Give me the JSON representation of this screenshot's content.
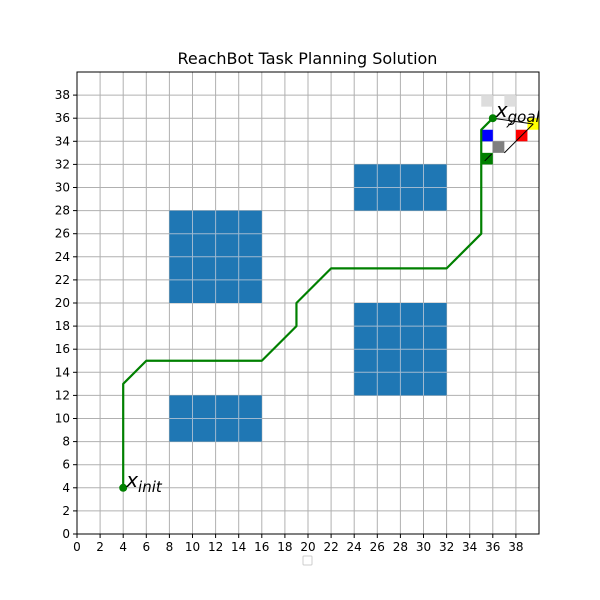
{
  "chart_data": {
    "type": "line",
    "title": "ReachBot Task Planning Solution",
    "xlabel": "",
    "ylabel": "",
    "xlim": [
      0,
      40
    ],
    "ylim": [
      0,
      40
    ],
    "xticks": [
      0,
      2,
      4,
      6,
      8,
      10,
      12,
      14,
      16,
      18,
      20,
      22,
      24,
      26,
      28,
      30,
      32,
      34,
      36,
      38
    ],
    "yticks": [
      0,
      2,
      4,
      6,
      8,
      10,
      12,
      14,
      16,
      18,
      20,
      22,
      24,
      26,
      28,
      30,
      32,
      34,
      36,
      38
    ],
    "grid": true,
    "grid_spacing": 2,
    "obstacles": [
      {
        "x": [
          8,
          16
        ],
        "y": [
          20,
          28
        ],
        "color": "#1f77b4"
      },
      {
        "x": [
          8,
          16
        ],
        "y": [
          8,
          12
        ],
        "color": "#1f77b4"
      },
      {
        "x": [
          24,
          32
        ],
        "y": [
          28,
          32
        ],
        "color": "#1f77b4"
      },
      {
        "x": [
          24,
          32
        ],
        "y": [
          12,
          20
        ],
        "color": "#1f77b4"
      }
    ],
    "series": [
      {
        "color": "#008000",
        "points": [
          [
            4,
            4
          ],
          [
            4,
            13
          ],
          [
            6,
            15
          ],
          [
            16,
            15
          ],
          [
            19,
            18
          ],
          [
            19,
            20
          ],
          [
            22,
            23
          ],
          [
            32,
            23
          ],
          [
            35,
            26
          ],
          [
            35,
            35
          ],
          [
            36,
            36
          ]
        ]
      }
    ],
    "markers": [
      {
        "label": "x_init",
        "x": 4,
        "y": 4,
        "color": "#008000"
      },
      {
        "label": "x_goal",
        "x": 36,
        "y": 36,
        "color": "#008000"
      }
    ],
    "goal_cells": [
      {
        "x": 35,
        "y": 37,
        "color": "#dddddd"
      },
      {
        "x": 37,
        "y": 37,
        "color": "#dddddd"
      },
      {
        "x": 35,
        "y": 34,
        "color": "#0000ff"
      },
      {
        "x": 38,
        "y": 34,
        "color": "#ff0000"
      },
      {
        "x": 36,
        "y": 33,
        "color": "#808080"
      },
      {
        "x": 35,
        "y": 32,
        "color": "#008000"
      },
      {
        "x": 39,
        "y": 35,
        "color": "#ffff00"
      }
    ],
    "reach_lines": [
      [
        [
          36,
          36
        ],
        [
          39.5,
          35.5
        ]
      ],
      [
        [
          37,
          33
        ],
        [
          39.5,
          35.5
        ]
      ],
      [
        [
          35.3,
          32.3
        ],
        [
          35.9,
          32.9
        ]
      ],
      [
        [
          37.2,
          35.2
        ],
        [
          37.7,
          35.7
        ]
      ]
    ],
    "legend": "bottom-center (empty)"
  }
}
